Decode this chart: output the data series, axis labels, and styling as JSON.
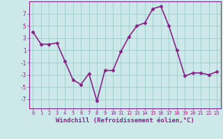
{
  "x": [
    0,
    1,
    2,
    3,
    4,
    5,
    6,
    7,
    8,
    9,
    10,
    11,
    12,
    13,
    14,
    15,
    16,
    17,
    18,
    19,
    20,
    21,
    22,
    23
  ],
  "y": [
    4.0,
    2.0,
    2.0,
    2.2,
    -0.8,
    -3.8,
    -4.6,
    -2.8,
    -7.3,
    -2.3,
    -2.3,
    0.8,
    3.2,
    5.0,
    5.5,
    7.8,
    8.2,
    5.0,
    1.0,
    -3.2,
    -2.7,
    -2.7,
    -3.0,
    -2.5
  ],
  "line_color": "#882288",
  "marker": "D",
  "marker_size": 2.5,
  "bg_color": "#cce8e8",
  "grid_color": "#99cccc",
  "xlabel": "Windchill (Refroidissement éolien,°C)",
  "xlabel_fontsize": 6.5,
  "xtick_labels": [
    "0",
    "1",
    "2",
    "3",
    "4",
    "5",
    "6",
    "7",
    "8",
    "9",
    "10",
    "11",
    "12",
    "13",
    "14",
    "15",
    "16",
    "17",
    "18",
    "19",
    "20",
    "21",
    "22",
    "23"
  ],
  "ytick_values": [
    -7,
    -5,
    -3,
    -1,
    1,
    3,
    5,
    7
  ],
  "ytick_labels": [
    "-7",
    "-5",
    "-3",
    "-1",
    "1",
    "3",
    "5",
    "7"
  ],
  "ylim": [
    -8.5,
    9.0
  ],
  "xlim": [
    -0.5,
    23.5
  ],
  "tick_color": "#882288",
  "axis_color": "#882288",
  "line_width": 1.2
}
